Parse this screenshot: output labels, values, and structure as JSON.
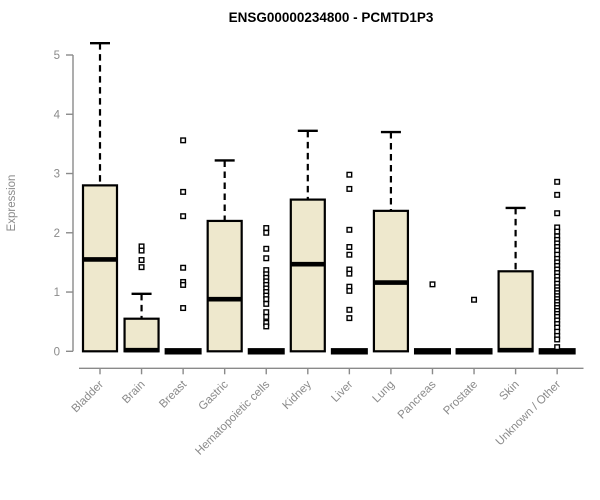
{
  "chart_data": {
    "type": "boxplot",
    "title": "ENSG00000234800 - PCMTD1P3",
    "ylabel": "Expression",
    "xlabel": "",
    "ylim": [
      0,
      5
    ],
    "yticks": [
      0,
      1,
      2,
      3,
      4,
      5
    ],
    "legend": "none",
    "grid": false,
    "categories": [
      "Bladder",
      "Brain",
      "Breast",
      "Gastric",
      "Hematopoietic cells",
      "Kidney",
      "Liver",
      "Lung",
      "Pancreas",
      "Prostate",
      "Skin",
      "Unknown / Other"
    ],
    "series": [
      {
        "label": "Bladder",
        "q1": 0,
        "median": 1.55,
        "q3": 2.8,
        "whisker_low": 0,
        "whisker_high": 5.2,
        "outliers": []
      },
      {
        "label": "Brain",
        "q1": 0,
        "median": 0.02,
        "q3": 0.55,
        "whisker_low": 0,
        "whisker_high": 0.97,
        "outliers": [
          1.77,
          1.7,
          1.54,
          1.42
        ]
      },
      {
        "label": "Breast",
        "q1": 0,
        "median": 0.02,
        "q3": 0.02,
        "whisker_low": 0,
        "whisker_high": 0.02,
        "outliers": [
          3.56,
          2.69,
          2.28,
          1.41,
          1.17,
          1.12,
          0.73
        ]
      },
      {
        "label": "Gastric",
        "q1": 0,
        "median": 0.88,
        "q3": 2.2,
        "whisker_low": 0,
        "whisker_high": 3.22,
        "outliers": []
      },
      {
        "label": "Hematopoietic cells",
        "q1": 0,
        "median": 0.02,
        "q3": 0.02,
        "whisker_low": 0,
        "whisker_high": 0.02,
        "outliers": [
          2.08,
          2.0,
          1.73,
          1.57,
          1.37,
          1.3,
          1.24,
          1.18,
          1.12,
          1.06,
          1.0,
          0.94,
          0.88,
          0.8,
          0.66,
          0.58,
          0.48,
          0.42
        ]
      },
      {
        "label": "Kidney",
        "q1": 0,
        "median": 1.47,
        "q3": 2.56,
        "whisker_low": 0,
        "whisker_high": 3.72,
        "outliers": []
      },
      {
        "label": "Liver",
        "q1": 0,
        "median": 0.02,
        "q3": 0.02,
        "whisker_low": 0,
        "whisker_high": 0.02,
        "outliers": [
          2.98,
          2.74,
          2.05,
          1.76,
          1.63,
          1.38,
          1.31,
          1.09,
          1.02,
          0.7,
          0.56
        ]
      },
      {
        "label": "Lung",
        "q1": 0,
        "median": 1.16,
        "q3": 2.37,
        "whisker_low": 0,
        "whisker_high": 3.7,
        "outliers": []
      },
      {
        "label": "Pancreas",
        "q1": 0,
        "median": 0.02,
        "q3": 0.02,
        "whisker_low": 0,
        "whisker_high": 0.02,
        "outliers": [
          1.13
        ]
      },
      {
        "label": "Prostate",
        "q1": 0,
        "median": 0.02,
        "q3": 0.02,
        "whisker_low": 0,
        "whisker_high": 0.02,
        "outliers": [
          0.87
        ]
      },
      {
        "label": "Skin",
        "q1": 0,
        "median": 0.02,
        "q3": 1.35,
        "whisker_low": 0,
        "whisker_high": 2.42,
        "outliers": []
      },
      {
        "label": "Unknown / Other",
        "q1": 0,
        "median": 0.02,
        "q3": 0.02,
        "whisker_low": 0,
        "whisker_high": 0.02,
        "outliers": [
          2.86,
          2.64,
          2.33,
          2.09,
          2.02,
          1.94,
          1.88,
          1.82,
          1.76,
          1.7,
          1.63,
          1.56,
          1.5,
          1.44,
          1.38,
          1.32,
          1.26,
          1.2,
          1.14,
          1.08,
          1.03,
          0.98,
          0.93,
          0.88,
          0.83,
          0.78,
          0.73,
          0.68,
          0.63,
          0.58,
          0.52,
          0.46,
          0.4,
          0.33,
          0.26,
          0.2,
          0.07
        ]
      }
    ],
    "colors": {
      "box_fill": "#EEE8CD",
      "box_stroke": "#000000",
      "axis": "#8A8A8A",
      "tick_label": "#8A8A8A",
      "title": "#000000",
      "background": "#FFFFFF"
    }
  }
}
